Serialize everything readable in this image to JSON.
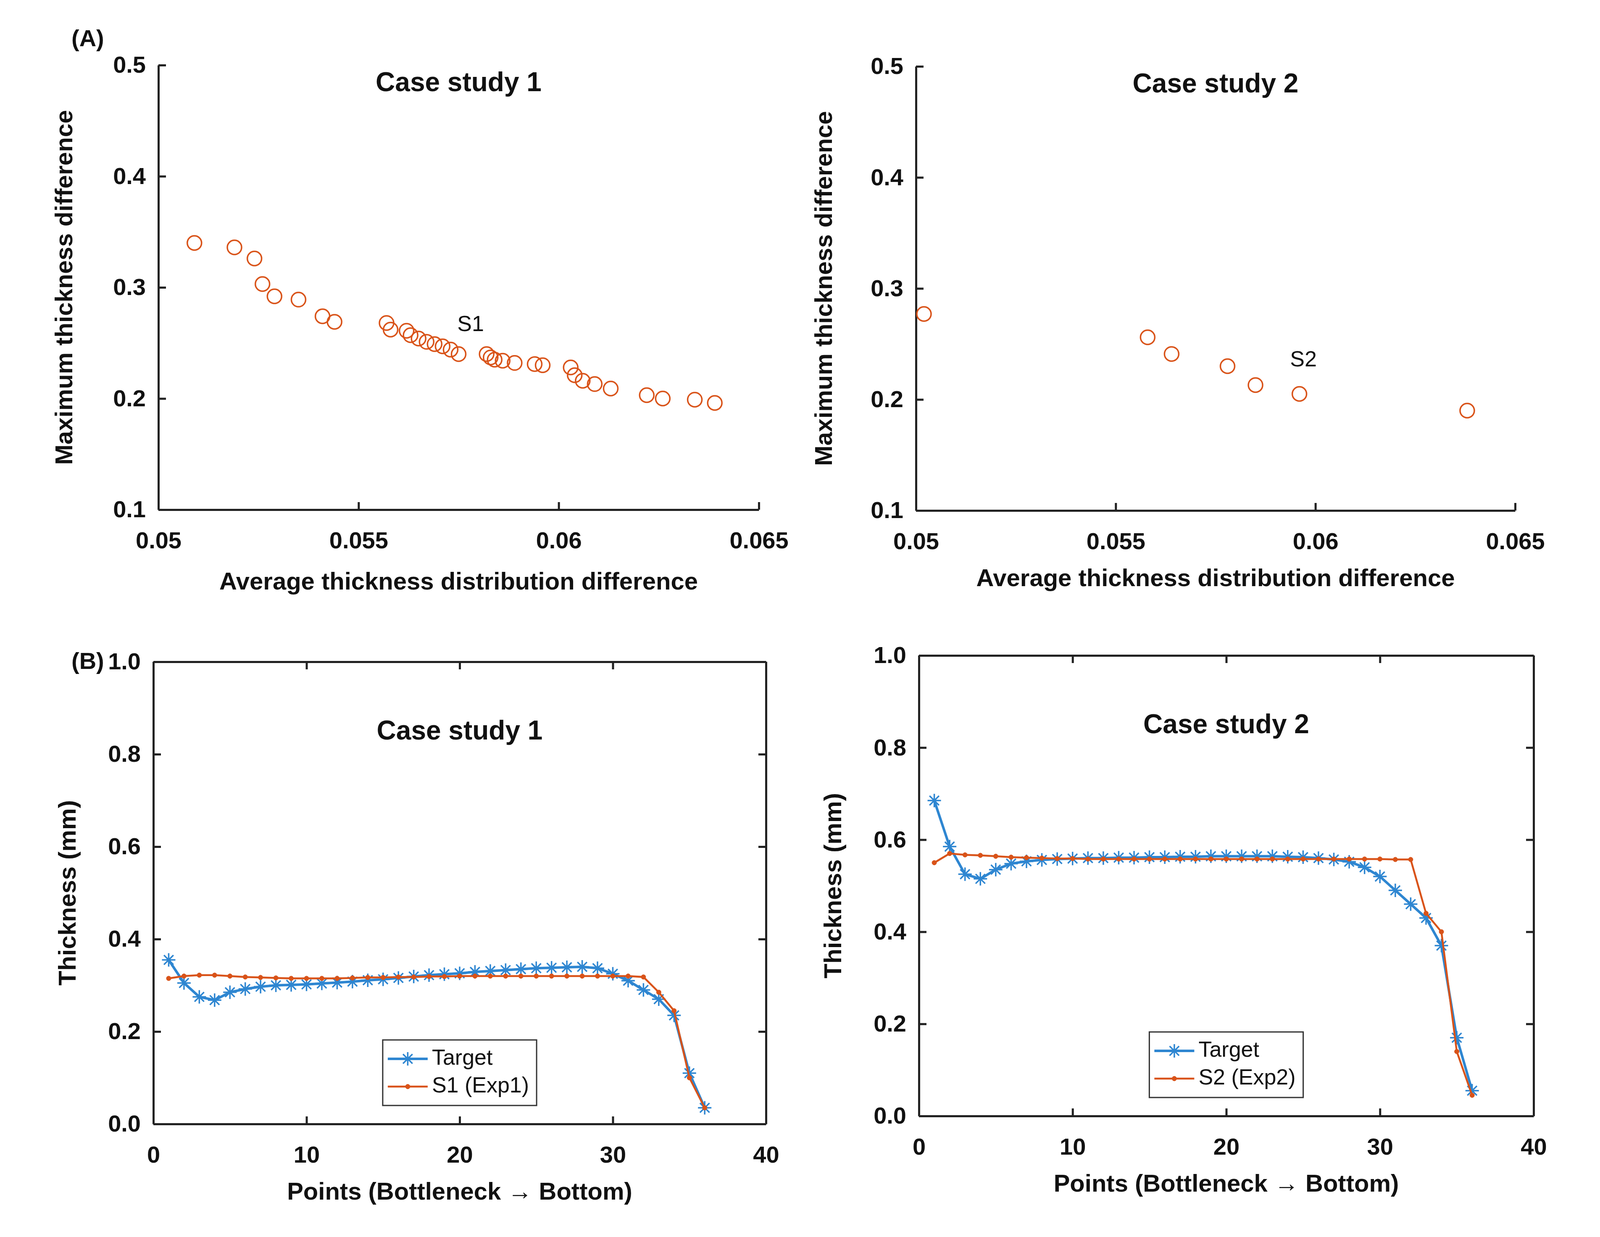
{
  "chart_data": [
    {
      "type": "scatter",
      "panel_label": "(A)",
      "title": "Case study 1",
      "x_label": "Average thickness distribution difference",
      "y_label": "Maximum thickness difference",
      "x": [
        0.0509,
        0.0519,
        0.0524,
        0.0526,
        0.0529,
        0.0535,
        0.0541,
        0.0544,
        0.0557,
        0.0558,
        0.0562,
        0.0563,
        0.0565,
        0.0567,
        0.0569,
        0.0571,
        0.0573,
        0.0575,
        0.0582,
        0.0583,
        0.0584,
        0.0586,
        0.0589,
        0.0594,
        0.0596,
        0.0603,
        0.0604,
        0.0606,
        0.0609,
        0.0613,
        0.0622,
        0.0626,
        0.0634,
        0.0639
      ],
      "values": [
        0.34,
        0.336,
        0.326,
        0.303,
        0.292,
        0.289,
        0.274,
        0.269,
        0.268,
        0.262,
        0.261,
        0.257,
        0.254,
        0.251,
        0.249,
        0.247,
        0.244,
        0.24,
        0.24,
        0.237,
        0.235,
        0.234,
        0.232,
        0.231,
        0.23,
        0.228,
        0.221,
        0.216,
        0.213,
        0.209,
        0.203,
        0.2,
        0.199,
        0.196
      ],
      "color": "#d95319",
      "marker": "circle",
      "annotations": [
        {
          "text": "S1",
          "x": 0.0578,
          "y": 0.266
        }
      ],
      "xlim": [
        0.05,
        0.065
      ],
      "xticks": [
        0.05,
        0.055,
        0.06,
        0.065
      ],
      "ylim": [
        0.1,
        0.5
      ],
      "yticks": [
        0.1,
        0.2,
        0.3,
        0.4,
        0.5
      ]
    },
    {
      "type": "scatter",
      "title": "Case study 2",
      "x_label": "Average thickness distribution difference",
      "y_label": "Maximum thickness difference",
      "x": [
        0.0502,
        0.0558,
        0.0564,
        0.0578,
        0.0585,
        0.0596,
        0.0638
      ],
      "values": [
        0.277,
        0.256,
        0.241,
        0.23,
        0.213,
        0.205,
        0.19
      ],
      "color": "#d95319",
      "marker": "circle",
      "annotations": [
        {
          "text": "S2",
          "x": 0.0597,
          "y": 0.235
        }
      ],
      "xlim": [
        0.05,
        0.065
      ],
      "xticks": [
        0.05,
        0.055,
        0.06,
        0.065
      ],
      "ylim": [
        0.1,
        0.5
      ],
      "yticks": [
        0.1,
        0.2,
        0.3,
        0.4,
        0.5
      ]
    },
    {
      "type": "line",
      "panel_label": "(B)",
      "title": "Case study 1",
      "x_label": "Points (Bottleneck → Bottom)",
      "y_label": "Thickness (mm)",
      "x": [
        1,
        2,
        3,
        4,
        5,
        6,
        7,
        8,
        9,
        10,
        11,
        12,
        13,
        14,
        15,
        16,
        17,
        18,
        19,
        20,
        21,
        22,
        23,
        24,
        25,
        26,
        27,
        28,
        29,
        30,
        31,
        32,
        33,
        34,
        35,
        36
      ],
      "series": [
        {
          "name": "Target",
          "color": "#2e86d1",
          "marker": "asterisk",
          "line_style": "solid",
          "values": [
            0.355,
            0.305,
            0.275,
            0.268,
            0.285,
            0.292,
            0.297,
            0.3,
            0.301,
            0.302,
            0.304,
            0.306,
            0.308,
            0.311,
            0.313,
            0.316,
            0.319,
            0.322,
            0.324,
            0.326,
            0.329,
            0.331,
            0.333,
            0.335,
            0.337,
            0.338,
            0.339,
            0.34,
            0.337,
            0.325,
            0.31,
            0.29,
            0.27,
            0.235,
            0.11,
            0.035
          ]
        },
        {
          "name": "S1 (Exp1)",
          "color": "#d95319",
          "marker": "point",
          "line_style": "solid",
          "values": [
            0.315,
            0.32,
            0.322,
            0.322,
            0.32,
            0.318,
            0.317,
            0.316,
            0.315,
            0.315,
            0.315,
            0.315,
            0.316,
            0.317,
            0.317,
            0.318,
            0.318,
            0.319,
            0.319,
            0.32,
            0.32,
            0.32,
            0.32,
            0.32,
            0.32,
            0.32,
            0.32,
            0.32,
            0.32,
            0.32,
            0.32,
            0.318,
            0.285,
            0.245,
            0.1,
            0.035
          ]
        }
      ],
      "legend": "bottom",
      "xlim": [
        0,
        40
      ],
      "xticks": [
        0,
        10,
        20,
        30,
        40
      ],
      "ylim": [
        0,
        1
      ],
      "yticks": [
        {
          "value": 0,
          "label": "0.0"
        },
        0.2,
        0.4,
        0.6,
        0.8,
        {
          "value": 1,
          "label": "1.0"
        }
      ]
    },
    {
      "type": "line",
      "title": "Case study 2",
      "x_label": "Points (Bottleneck → Bottom)",
      "y_label": "Thickness (mm)",
      "x": [
        1,
        2,
        3,
        4,
        5,
        6,
        7,
        8,
        9,
        10,
        11,
        12,
        13,
        14,
        15,
        16,
        17,
        18,
        19,
        20,
        21,
        22,
        23,
        24,
        25,
        26,
        27,
        28,
        29,
        30,
        31,
        32,
        33,
        34,
        35,
        36
      ],
      "series": [
        {
          "name": "Target",
          "color": "#2e86d1",
          "marker": "asterisk",
          "line_style": "solid",
          "values": [
            0.685,
            0.585,
            0.525,
            0.515,
            0.535,
            0.548,
            0.553,
            0.556,
            0.558,
            0.559,
            0.56,
            0.56,
            0.561,
            0.561,
            0.562,
            0.562,
            0.563,
            0.563,
            0.564,
            0.564,
            0.564,
            0.564,
            0.564,
            0.563,
            0.562,
            0.56,
            0.557,
            0.552,
            0.54,
            0.52,
            0.49,
            0.46,
            0.43,
            0.37,
            0.17,
            0.055
          ]
        },
        {
          "name": "S2 (Exp2)",
          "color": "#d95319",
          "marker": "point",
          "line_style": "solid",
          "values": [
            0.55,
            0.57,
            0.567,
            0.566,
            0.564,
            0.562,
            0.561,
            0.56,
            0.559,
            0.559,
            0.558,
            0.558,
            0.558,
            0.558,
            0.558,
            0.558,
            0.558,
            0.558,
            0.558,
            0.558,
            0.558,
            0.558,
            0.558,
            0.558,
            0.558,
            0.558,
            0.558,
            0.558,
            0.558,
            0.558,
            0.557,
            0.557,
            0.44,
            0.4,
            0.14,
            0.045
          ]
        }
      ],
      "legend": "bottom",
      "xlim": [
        0,
        40
      ],
      "xticks": [
        0,
        10,
        20,
        30,
        40
      ],
      "ylim": [
        0,
        1
      ],
      "yticks": [
        {
          "value": 0,
          "label": "0.0"
        },
        0.2,
        0.4,
        0.6,
        0.8,
        {
          "value": 1,
          "label": "1.0"
        }
      ]
    }
  ]
}
